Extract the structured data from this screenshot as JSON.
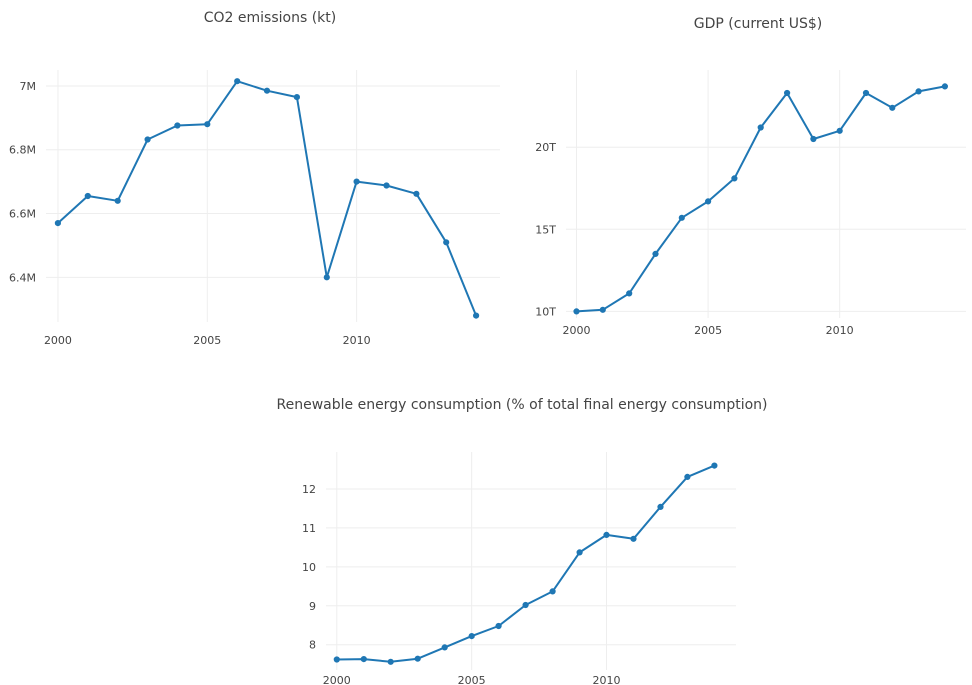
{
  "chart_data": [
    {
      "type": "line",
      "title": "CO2 emissions (kt)",
      "x": [
        2000,
        2001,
        2002,
        2003,
        2004,
        2005,
        2006,
        2007,
        2008,
        2009,
        2010,
        2011,
        2012,
        2013,
        2014
      ],
      "values": [
        6570000,
        6655000,
        6640000,
        6832000,
        6876000,
        6880000,
        7015000,
        6985000,
        6965000,
        6400000,
        6700000,
        6688000,
        6662000,
        6510000,
        6280000
      ],
      "xticks": [
        2000,
        2005,
        2010
      ],
      "xtick_labels": [
        "2000",
        "2005",
        "2010"
      ],
      "yticks": [
        6400000,
        6600000,
        6800000,
        7000000
      ],
      "ytick_labels": [
        "6.4M",
        "6.6M",
        "6.8M",
        "7M"
      ],
      "xlim": [
        1999.6,
        2014.8
      ],
      "ylim": [
        6260000,
        7050000
      ],
      "grid": true,
      "color": "#1f77b4"
    },
    {
      "type": "line",
      "title": "GDP (current US$)",
      "x": [
        2000,
        2001,
        2002,
        2003,
        2004,
        2005,
        2006,
        2007,
        2008,
        2009,
        2010,
        2011,
        2012,
        2013,
        2014
      ],
      "values": [
        10000000000000,
        10100000000000,
        11100000000000,
        13500000000000,
        15700000000000,
        16700000000000,
        18100000000000,
        21200000000000,
        23300000000000,
        20500000000000,
        21000000000000,
        23300000000000,
        22400000000000,
        23400000000000,
        23700000000000
      ],
      "xticks": [
        2000,
        2005,
        2010
      ],
      "xtick_labels": [
        "2000",
        "2005",
        "2010"
      ],
      "yticks": [
        10000000000000,
        15000000000000,
        20000000000000
      ],
      "ytick_labels": [
        "10T",
        "15T",
        "20T"
      ],
      "xlim": [
        1999.6,
        2014.8
      ],
      "ylim": [
        9600000000000,
        24700000000000
      ],
      "grid": true,
      "color": "#1f77b4"
    },
    {
      "type": "line",
      "title": "Renewable energy consumption (% of total final energy consumption)",
      "x": [
        2000,
        2001,
        2002,
        2003,
        2004,
        2005,
        2006,
        2007,
        2008,
        2009,
        2010,
        2011,
        2012,
        2013,
        2014
      ],
      "values": [
        7.62,
        7.63,
        7.56,
        7.64,
        7.93,
        8.22,
        8.48,
        9.02,
        9.37,
        10.37,
        10.82,
        10.72,
        11.54,
        12.31,
        12.6
      ],
      "xticks": [
        2000,
        2005,
        2010
      ],
      "xtick_labels": [
        "2000",
        "2005",
        "2010"
      ],
      "yticks": [
        8,
        9,
        10,
        11,
        12
      ],
      "ytick_labels": [
        "8",
        "9",
        "10",
        "11",
        "12"
      ],
      "xlim": [
        1999.6,
        2014.8
      ],
      "ylim": [
        7.35,
        12.95
      ],
      "grid": true,
      "color": "#1f77b4"
    }
  ]
}
